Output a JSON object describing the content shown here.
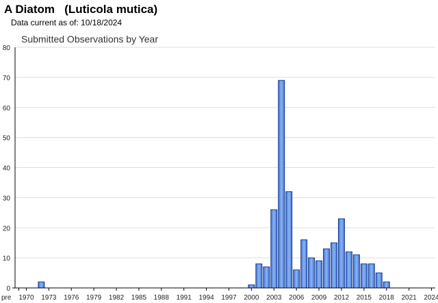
{
  "header": {
    "species_title": "A Diatom   (Luticola mutica)",
    "data_current": "Data current as of: 10/18/2024"
  },
  "chart_data": {
    "type": "bar",
    "title": "Submitted Observations by Year",
    "xlabel": "",
    "ylabel": "",
    "ylim": [
      0,
      80
    ],
    "yticks": [
      0,
      10,
      20,
      30,
      40,
      50,
      60,
      70,
      80
    ],
    "x_tick_labels": [
      "pre",
      "1970",
      "1973",
      "1976",
      "1979",
      "1982",
      "1985",
      "1988",
      "1991",
      "1994",
      "1997",
      "2000",
      "2003",
      "2006",
      "2009",
      "2012",
      "2015",
      "2018",
      "2021",
      "2024"
    ],
    "categories": [
      "pre",
      "1970",
      "1971",
      "1972",
      "1973",
      "1974",
      "1975",
      "1976",
      "1977",
      "1978",
      "1979",
      "1980",
      "1981",
      "1982",
      "1983",
      "1984",
      "1985",
      "1986",
      "1987",
      "1988",
      "1989",
      "1990",
      "1991",
      "1992",
      "1993",
      "1994",
      "1995",
      "1996",
      "1997",
      "1998",
      "1999",
      "2000",
      "2001",
      "2002",
      "2003",
      "2004",
      "2005",
      "2006",
      "2007",
      "2008",
      "2009",
      "2010",
      "2011",
      "2012",
      "2013",
      "2014",
      "2015",
      "2016",
      "2017",
      "2018",
      "2019",
      "2020",
      "2021",
      "2022",
      "2023",
      "2024"
    ],
    "values": [
      0,
      0,
      0,
      2,
      0,
      0,
      0,
      0,
      0,
      0,
      0,
      0,
      0,
      0,
      0,
      0,
      0,
      0,
      0,
      0,
      0,
      0,
      0,
      0,
      0,
      0,
      0,
      0,
      0,
      0,
      0,
      1,
      8,
      7,
      26,
      69,
      32,
      6,
      16,
      10,
      9,
      13,
      15,
      23,
      12,
      11,
      8,
      8,
      5,
      2,
      0,
      0,
      0,
      0,
      0,
      0
    ],
    "grid": true,
    "colors": {
      "bar_fill": "#5b8fe0",
      "bar_stroke": "#1a3c8c",
      "grid": "#dddddd",
      "axis": "#000000"
    }
  }
}
